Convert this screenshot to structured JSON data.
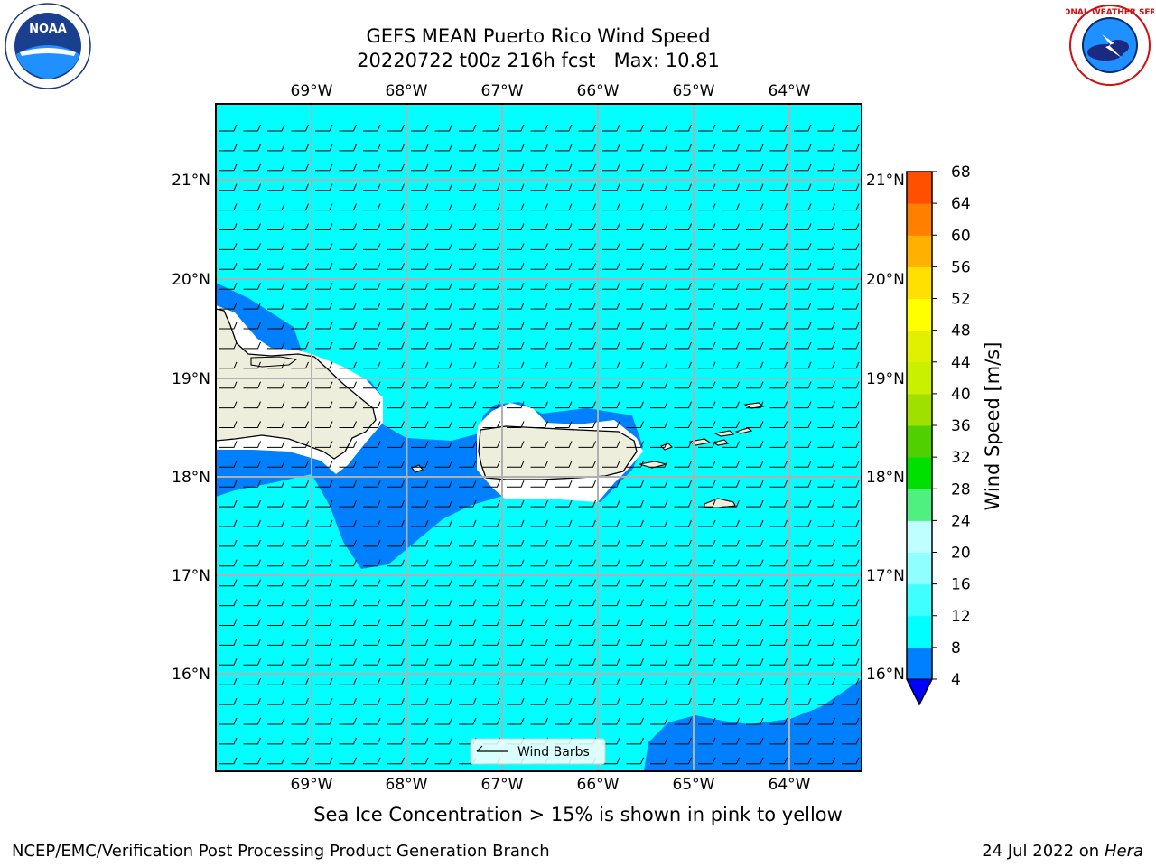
{
  "header": {
    "title_line1": "GEFS MEAN Puerto Rico Wind Speed",
    "title_line2": "20220722 t00z 216h fcst   Max: 10.81"
  },
  "logos": {
    "left": {
      "icon": "noaa-logo",
      "text": "NOAA"
    },
    "right": {
      "icon": "national-weather-service-logo",
      "text": "NATIONAL WEATHER SERVICE"
    }
  },
  "map": {
    "lon_labels": [
      "69°W",
      "68°W",
      "67°W",
      "66°W",
      "65°W",
      "64°W"
    ],
    "lat_labels": [
      "21°N",
      "20°N",
      "19°N",
      "18°N",
      "17°N",
      "16°N"
    ],
    "legend_label": "Wind Barbs",
    "colors": {
      "ocean_8_12": "#00ffff",
      "ocean_4_8": "#0080ff",
      "land": "#eeeedd",
      "masked": "#ffffff",
      "grid": "#b0b0b0"
    }
  },
  "colorbar": {
    "label": "Wind Speed [m/s]",
    "ticks": [
      "4",
      "8",
      "12",
      "16",
      "20",
      "24",
      "28",
      "32",
      "36",
      "40",
      "44",
      "48",
      "52",
      "56",
      "60",
      "64",
      "68"
    ],
    "colors": [
      "#0080ff",
      "#00ffff",
      "#40ffff",
      "#90ffff",
      "#c0ffff",
      "#50f080",
      "#00e000",
      "#50d000",
      "#a0e000",
      "#c8f000",
      "#e0f000",
      "#ffff00",
      "#ffe000",
      "#ffb000",
      "#ff8000",
      "#ff5000",
      "#ff2000",
      "#ff0000"
    ],
    "under_color": "#0000ff"
  },
  "footer": {
    "note": "Sea Ice Concentration > 15% is shown in pink to yellow",
    "credit": "NCEP/EMC/Verification Post Processing Product Generation Branch",
    "date_prefix": "24 Jul 2022 on ",
    "date_host": "Hera"
  }
}
